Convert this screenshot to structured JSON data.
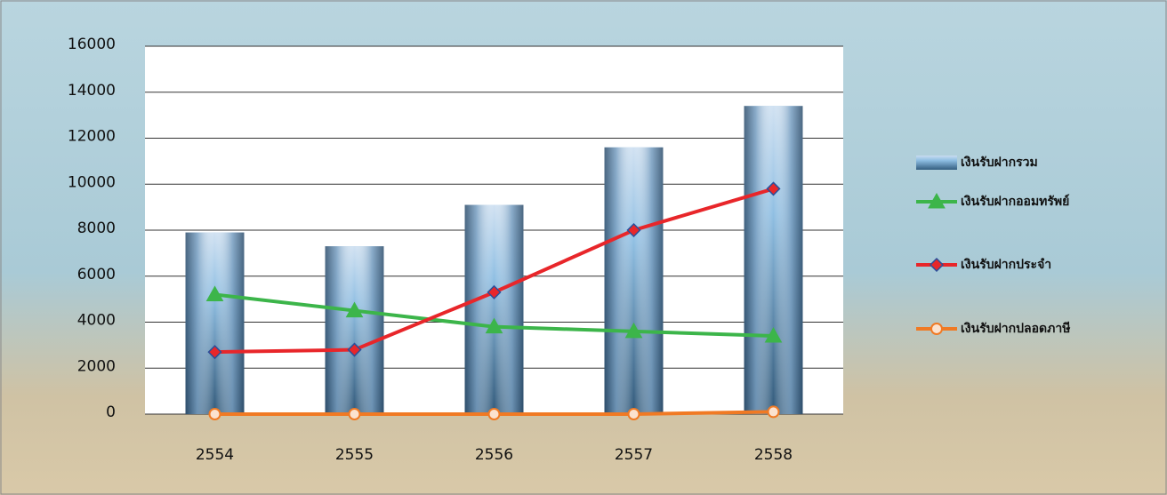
{
  "chart_data": {
    "type": "combo",
    "categories": [
      "2554",
      "2555",
      "2556",
      "2557",
      "2558"
    ],
    "series": [
      {
        "name": "เงินรับฝากรวม",
        "type": "bar",
        "color": "#6aa8d8",
        "values": [
          7900,
          7300,
          9100,
          11600,
          13400
        ]
      },
      {
        "name": "เงินรับฝากออมทรัพย์",
        "type": "line",
        "marker": "triangle",
        "color": "#3cb54a",
        "values": [
          5200,
          4500,
          3800,
          3600,
          3400
        ]
      },
      {
        "name": "เงินรับฝากประจำ",
        "type": "line",
        "marker": "diamond",
        "color": "#e8262a",
        "values": [
          2700,
          2800,
          5300,
          8000,
          9800
        ]
      },
      {
        "name": "เงินรับฝากปลอดภาษี",
        "type": "line",
        "marker": "circle",
        "color": "#f07a24",
        "values": [
          0,
          0,
          0,
          0,
          100
        ]
      }
    ],
    "ylim": [
      0,
      16000
    ],
    "yticks": [
      0,
      2000,
      4000,
      6000,
      8000,
      10000,
      12000,
      14000,
      16000
    ],
    "grid": true,
    "legend": "right"
  }
}
